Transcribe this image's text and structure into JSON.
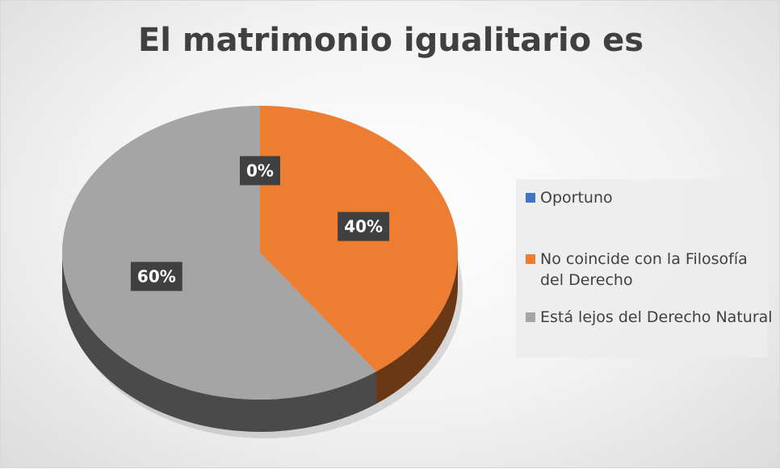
{
  "chart_data": {
    "type": "pie3d",
    "title": "El matrimonio igualitario es",
    "categories": [
      "Oportuno",
      "No coincide con la Filosofía del Derecho",
      "Está lejos del Derecho Natural"
    ],
    "values": [
      0,
      40,
      60
    ],
    "value_labels": [
      "0%",
      "40%",
      "60%"
    ],
    "colors": [
      "#4472c4",
      "#ed7d31",
      "#a5a5a5"
    ],
    "legend": "right"
  }
}
